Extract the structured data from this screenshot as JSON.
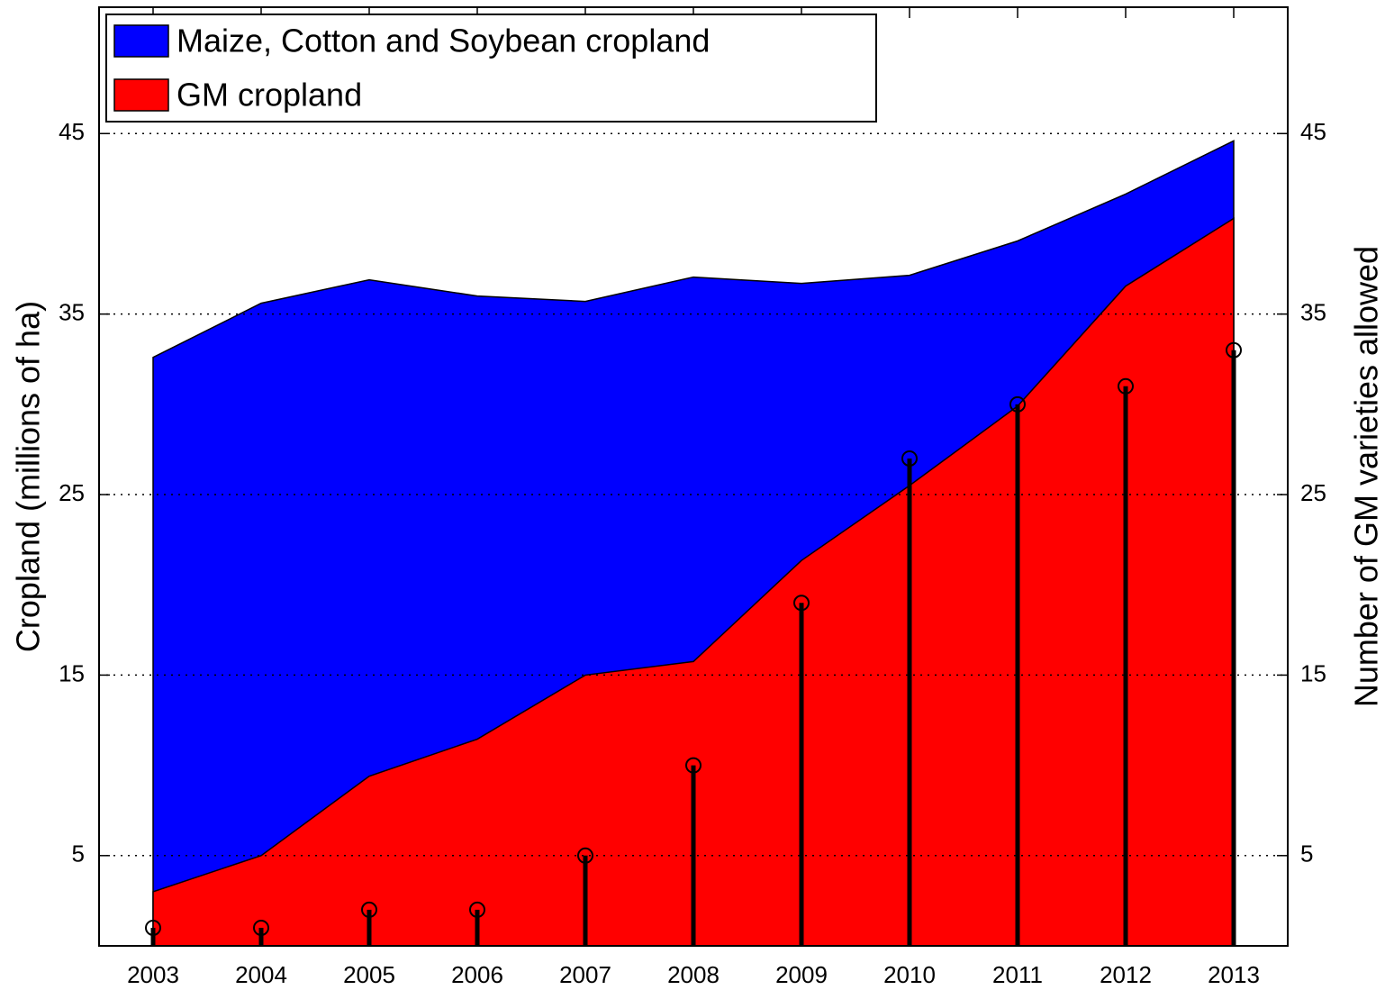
{
  "chart_data": {
    "type": "area",
    "ylabel": "Cropland (millions of ha)",
    "y2label": "Number of GM varieties allowed",
    "x": [
      2003,
      2004,
      2005,
      2006,
      2007,
      2008,
      2009,
      2010,
      2011,
      2012,
      2013
    ],
    "xlim": [
      2002.5,
      2013.5
    ],
    "xticks": [
      2003,
      2004,
      2005,
      2006,
      2007,
      2008,
      2009,
      2010,
      2011,
      2012,
      2013
    ],
    "ylim": [
      0,
      52
    ],
    "yticks": [
      5,
      15,
      25,
      35,
      45
    ],
    "y2lim": [
      0,
      52
    ],
    "y2ticks": [
      5,
      15,
      25,
      35,
      45
    ],
    "grid": true,
    "legend": "upper left",
    "series": [
      {
        "name": "Maize, Cotton and Soybean cropland",
        "type": "area",
        "color": "#0000ff",
        "values": [
          32.6,
          35.6,
          36.9,
          36.0,
          35.7,
          37.05,
          36.7,
          37.15,
          39.05,
          41.65,
          44.6
        ]
      },
      {
        "name": "GM cropland",
        "type": "area",
        "color": "#ff0000",
        "values": [
          3.0,
          5.0,
          9.4,
          11.45,
          15.0,
          15.75,
          21.35,
          25.5,
          29.9,
          36.55,
          40.3
        ]
      },
      {
        "type": "stem",
        "axis": "y2",
        "color": "#000000",
        "values": [
          1,
          1,
          2,
          2,
          5,
          10,
          19,
          27,
          30,
          31,
          33
        ]
      }
    ]
  }
}
